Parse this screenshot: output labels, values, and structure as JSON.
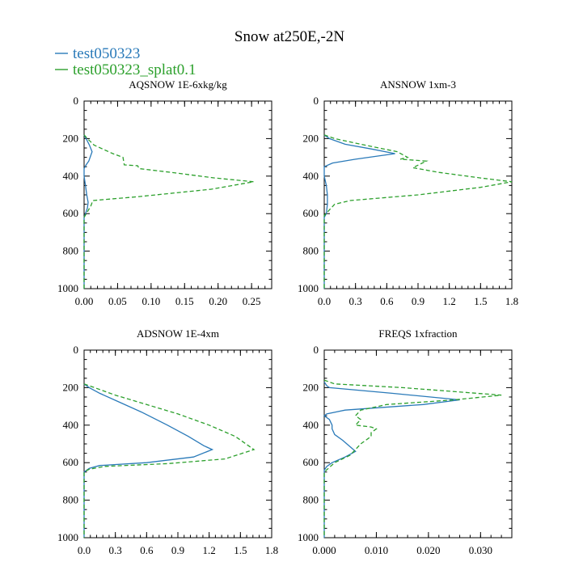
{
  "title": "Snow at250E,-2N",
  "colors": {
    "series1": "#2a7ab9",
    "series2": "#2ca02c",
    "axis": "#000000"
  },
  "legend": [
    {
      "label": "test050323",
      "color": "#2a7ab9",
      "dash": "solid"
    },
    {
      "label": "test050323_splat0.1",
      "color": "#2ca02c",
      "dash": "dashed"
    }
  ],
  "chart_data": [
    {
      "type": "line",
      "title": "AQSNOW  1E-6xkg/kg",
      "xlim": [
        0,
        0.28
      ],
      "ylim": [
        1000,
        0
      ],
      "xticks": [
        0,
        0.05,
        0.1,
        0.15,
        0.2,
        0.25
      ],
      "xtick_labels": [
        "0.00",
        "0.05",
        "0.10",
        "0.15",
        "0.20",
        "0.25"
      ],
      "yticks": [
        0,
        200,
        400,
        600,
        800,
        1000
      ],
      "ytick_labels": [
        "0",
        "200",
        "400",
        "600",
        "800",
        "1000"
      ],
      "series": [
        {
          "name": "test050323",
          "x": [
            0,
            0.003,
            0.008,
            0.012,
            0.007,
            0.003,
            0.0,
            0.0,
            0.002,
            0.004,
            0.006,
            0.005,
            0.002,
            0.0,
            0.0
          ],
          "y": [
            180,
            200,
            235,
            270,
            320,
            340,
            360,
            400,
            450,
            500,
            540,
            570,
            600,
            620,
            1000
          ]
        },
        {
          "name": "test050323_splat0.1",
          "x": [
            0,
            0.005,
            0.015,
            0.043,
            0.058,
            0.06,
            0.08,
            0.082,
            0.13,
            0.195,
            0.253,
            0.19,
            0.08,
            0.013,
            0.01,
            0.005,
            0.0,
            0.0
          ],
          "y": [
            180,
            200,
            235,
            280,
            300,
            340,
            345,
            360,
            380,
            410,
            430,
            470,
            510,
            530,
            560,
            590,
            620,
            1000
          ]
        }
      ]
    },
    {
      "type": "line",
      "title": "ANSNOW  1xm-3",
      "xlim": [
        0,
        1.8
      ],
      "ylim": [
        1000,
        0
      ],
      "xticks": [
        0,
        0.3,
        0.6,
        0.9,
        1.2,
        1.5,
        1.8
      ],
      "xtick_labels": [
        "0.0",
        "0.3",
        "0.6",
        "0.9",
        "1.2",
        "1.5",
        "1.8"
      ],
      "yticks": [
        0,
        200,
        400,
        600,
        800,
        1000
      ],
      "ytick_labels": [
        "0",
        "200",
        "400",
        "600",
        "800",
        "1000"
      ],
      "series": [
        {
          "name": "test050323",
          "x": [
            0,
            0.05,
            0.2,
            0.45,
            0.68,
            0.3,
            0.08,
            0.0,
            0.0,
            0.02,
            0.03,
            0.03,
            0.02,
            0.0,
            0.0
          ],
          "y": [
            180,
            200,
            230,
            255,
            280,
            310,
            330,
            350,
            400,
            450,
            500,
            550,
            600,
            620,
            1000
          ]
        },
        {
          "name": "test050323_splat0.1",
          "x": [
            0,
            0.1,
            0.35,
            0.7,
            0.8,
            0.73,
            0.98,
            0.85,
            1.1,
            1.5,
            1.8,
            1.5,
            0.9,
            0.25,
            0.1,
            0.05,
            0.0,
            0.0
          ],
          "y": [
            180,
            200,
            230,
            270,
            300,
            310,
            320,
            355,
            380,
            410,
            430,
            460,
            500,
            530,
            550,
            580,
            610,
            1000
          ]
        }
      ]
    },
    {
      "type": "line",
      "title": "ADSNOW  1E-4xm",
      "xlim": [
        0,
        1.8
      ],
      "ylim": [
        1000,
        0
      ],
      "xticks": [
        0,
        0.3,
        0.6,
        0.9,
        1.2,
        1.5,
        1.8
      ],
      "xtick_labels": [
        "0.0",
        "0.3",
        "0.6",
        "0.9",
        "1.2",
        "1.5",
        "1.8"
      ],
      "yticks": [
        0,
        200,
        400,
        600,
        800,
        1000
      ],
      "ytick_labels": [
        "0",
        "200",
        "400",
        "600",
        "800",
        "1000"
      ],
      "series": [
        {
          "name": "test050323",
          "x": [
            0,
            0.05,
            0.15,
            0.35,
            0.55,
            0.8,
            1.0,
            1.15,
            1.23,
            1.05,
            0.6,
            0.15,
            0.05,
            0.0,
            0.0
          ],
          "y": [
            180,
            200,
            230,
            280,
            330,
            400,
            460,
            510,
            530,
            570,
            600,
            615,
            630,
            650,
            1000
          ]
        },
        {
          "name": "test050323_splat0.1",
          "x": [
            0,
            0.1,
            0.3,
            0.6,
            0.9,
            1.2,
            1.45,
            1.63,
            1.35,
            0.8,
            0.2,
            0.05,
            0.0,
            0.0
          ],
          "y": [
            180,
            200,
            240,
            290,
            340,
            400,
            460,
            530,
            580,
            605,
            620,
            635,
            650,
            1000
          ]
        }
      ]
    },
    {
      "type": "line",
      "title": "FREQS  1xfraction",
      "xlim": [
        0,
        0.036
      ],
      "ylim": [
        1000,
        0
      ],
      "xticks": [
        0,
        0.01,
        0.02,
        0.03
      ],
      "xtick_labels": [
        "0.000",
        "0.010",
        "0.020",
        "0.030"
      ],
      "yticks": [
        0,
        200,
        400,
        600,
        800,
        1000
      ],
      "ytick_labels": [
        "0",
        "200",
        "400",
        "600",
        "800",
        "1000"
      ],
      "series": [
        {
          "name": "test050323",
          "x": [
            0,
            0.0005,
            0.001,
            0.013,
            0.026,
            0.019,
            0.004,
            0.0005,
            0.0,
            0.001,
            0.0015,
            0.0015,
            0.002,
            0.0035,
            0.006,
            0.004,
            0.0015,
            0.0005,
            0.0,
            0.0
          ],
          "y": [
            170,
            190,
            200,
            230,
            265,
            290,
            320,
            340,
            350,
            370,
            400,
            420,
            450,
            480,
            540,
            570,
            600,
            620,
            640,
            1000
          ]
        },
        {
          "name": "test050323_splat0.1",
          "x": [
            0,
            0.002,
            0.015,
            0.034,
            0.025,
            0.012,
            0.007,
            0.006,
            0.007,
            0.006,
            0.009,
            0.01,
            0.009,
            0.009,
            0.007,
            0.005,
            0.002,
            0.0,
            0.0
          ],
          "y": [
            160,
            180,
            200,
            240,
            265,
            290,
            320,
            350,
            370,
            400,
            410,
            420,
            440,
            460,
            500,
            560,
            600,
            650,
            1000
          ]
        }
      ]
    }
  ]
}
